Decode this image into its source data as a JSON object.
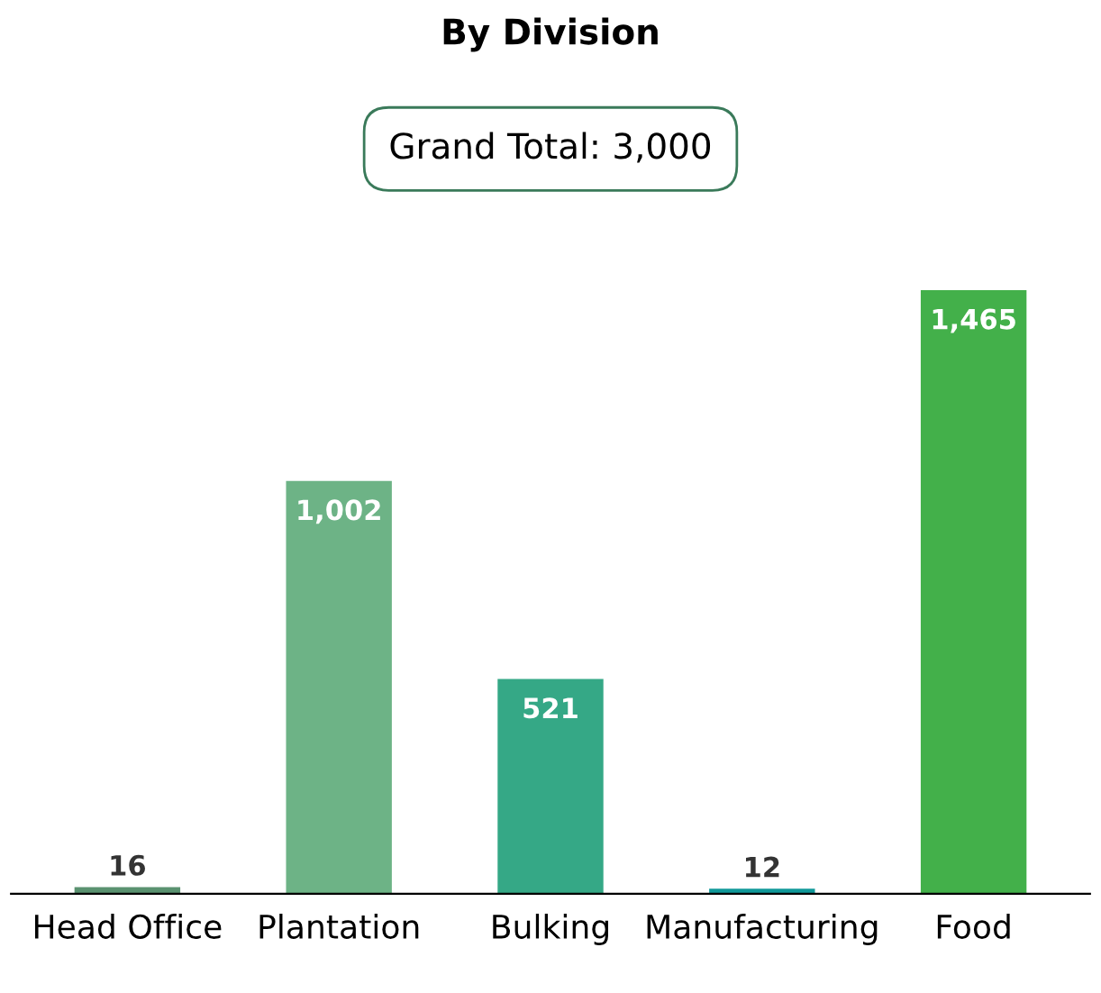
{
  "chart_data": {
    "type": "bar",
    "title": "By Division",
    "annotations": [
      "Grand Total: 3,000"
    ],
    "categories": [
      "Head Office",
      "Plantation",
      "Bulking",
      "Manufacturing",
      "Food"
    ],
    "values": [
      16,
      1002,
      521,
      12,
      1465
    ],
    "colors": [
      "#5a9270",
      "#6db386",
      "#35a886",
      "#11999a",
      "#43b04a"
    ],
    "value_labels": [
      "16",
      "1,002",
      "521",
      "12",
      "1,465"
    ],
    "grid": false,
    "legend": false
  }
}
